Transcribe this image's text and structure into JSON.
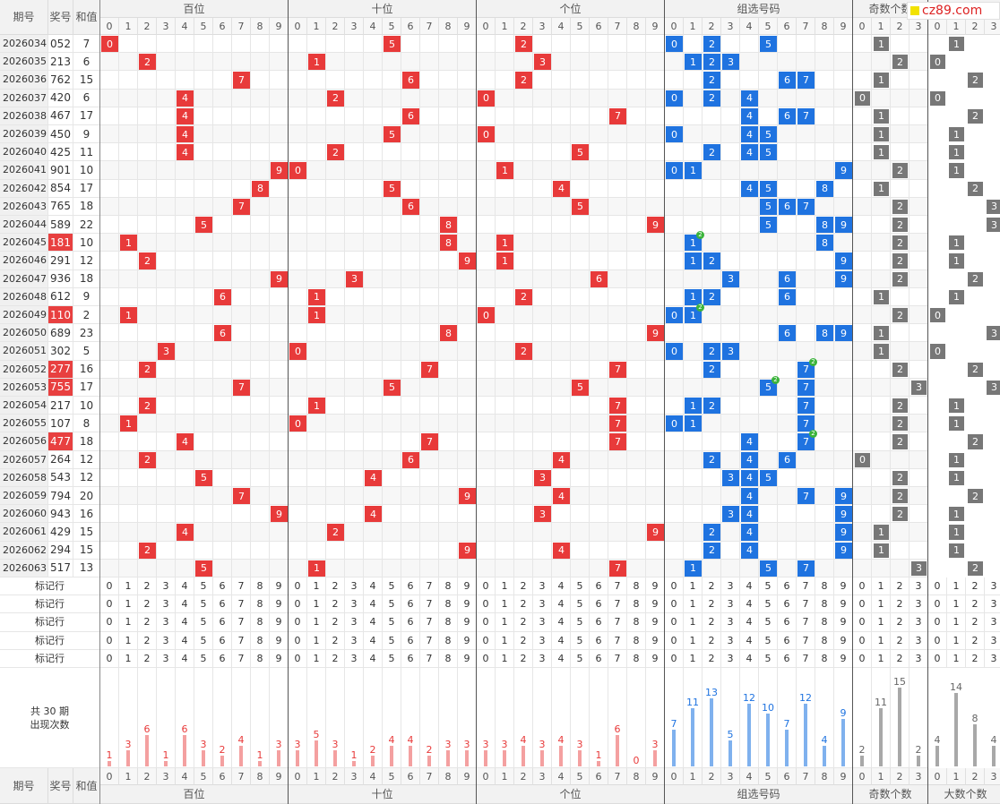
{
  "site_logo": "cz89.com",
  "headers": {
    "period": "期号",
    "number": "奖号",
    "sum": "和值",
    "groups": [
      "百位",
      "十位",
      "个位",
      "组选号码",
      "奇数个数",
      "大数个数"
    ]
  },
  "marker_label": "标记行",
  "marker_row_count": 5,
  "stats": {
    "line1": "共 30 期",
    "line2": "出现次数",
    "counts": [
      [
        1,
        3,
        6,
        1,
        6,
        3,
        2,
        4,
        1,
        3
      ],
      [
        3,
        5,
        3,
        1,
        2,
        4,
        4,
        2,
        3,
        3
      ],
      [
        3,
        3,
        4,
        3,
        4,
        3,
        1,
        6,
        0,
        3
      ],
      [
        7,
        11,
        13,
        5,
        12,
        10,
        7,
        12,
        4,
        9
      ],
      [
        2,
        11,
        15,
        2
      ],
      [
        4,
        14,
        8,
        4
      ]
    ]
  },
  "colors": {
    "red": "#e83a3a",
    "blue": "#1f73e0",
    "gray": "#777777",
    "badge": "#3bb43b",
    "bar_red": "#f4a0a0",
    "bar_blue": "#7fb1ee",
    "bar_gray": "#a8a8a8"
  },
  "rows": [
    {
      "period": "2026034",
      "number": "052",
      "sum": "7"
    },
    {
      "period": "2026035",
      "number": "213",
      "sum": "6"
    },
    {
      "period": "2026036",
      "number": "762",
      "sum": "15"
    },
    {
      "period": "2026037",
      "number": "420",
      "sum": "6"
    },
    {
      "period": "2026038",
      "number": "467",
      "sum": "17"
    },
    {
      "period": "2026039",
      "number": "450",
      "sum": "9"
    },
    {
      "period": "2026040",
      "number": "425",
      "sum": "11"
    },
    {
      "period": "2026041",
      "number": "901",
      "sum": "10"
    },
    {
      "period": "2026042",
      "number": "854",
      "sum": "17"
    },
    {
      "period": "2026043",
      "number": "765",
      "sum": "18"
    },
    {
      "period": "2026044",
      "number": "589",
      "sum": "22"
    },
    {
      "period": "2026045",
      "number": "181",
      "sum": "10",
      "hot": true
    },
    {
      "period": "2026046",
      "number": "291",
      "sum": "12"
    },
    {
      "period": "2026047",
      "number": "936",
      "sum": "18"
    },
    {
      "period": "2026048",
      "number": "612",
      "sum": "9"
    },
    {
      "period": "2026049",
      "number": "110",
      "sum": "2",
      "hot": true
    },
    {
      "period": "2026050",
      "number": "689",
      "sum": "23"
    },
    {
      "period": "2026051",
      "number": "302",
      "sum": "5"
    },
    {
      "period": "2026052",
      "number": "277",
      "sum": "16",
      "hot": true
    },
    {
      "period": "2026053",
      "number": "755",
      "sum": "17",
      "hot": true
    },
    {
      "period": "2026054",
      "number": "217",
      "sum": "10"
    },
    {
      "period": "2026055",
      "number": "107",
      "sum": "8"
    },
    {
      "period": "2026056",
      "number": "477",
      "sum": "18",
      "hot": true
    },
    {
      "period": "2026057",
      "number": "264",
      "sum": "12"
    },
    {
      "period": "2026058",
      "number": "543",
      "sum": "12"
    },
    {
      "period": "2026059",
      "number": "794",
      "sum": "20"
    },
    {
      "period": "2026060",
      "number": "943",
      "sum": "16"
    },
    {
      "period": "2026061",
      "number": "429",
      "sum": "15"
    },
    {
      "period": "2026062",
      "number": "294",
      "sum": "15"
    },
    {
      "period": "2026063",
      "number": "517",
      "sum": "13"
    }
  ]
}
